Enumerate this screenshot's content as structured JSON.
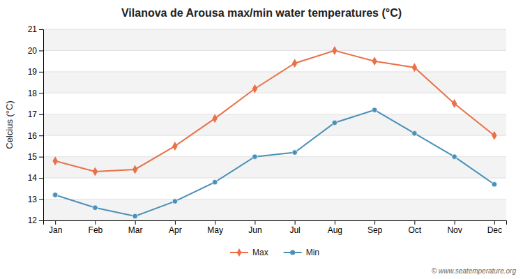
{
  "chart_data": {
    "type": "line",
    "title": "Vilanova de Arousa max/min water temperatures (°C)",
    "categories": [
      "Jan",
      "Feb",
      "Mar",
      "Apr",
      "May",
      "Jun",
      "Jul",
      "Aug",
      "Sep",
      "Oct",
      "Nov",
      "Dec"
    ],
    "series": [
      {
        "name": "Max",
        "color": "#E8714A",
        "marker": "diamond",
        "values": [
          14.8,
          14.3,
          14.4,
          15.5,
          16.8,
          18.2,
          19.4,
          20.0,
          19.5,
          19.2,
          17.5,
          16.0
        ]
      },
      {
        "name": "Min",
        "color": "#4A90B8",
        "marker": "circle",
        "values": [
          13.2,
          12.6,
          12.2,
          12.9,
          13.8,
          15.0,
          15.2,
          16.6,
          17.2,
          16.1,
          15.0,
          13.7
        ]
      }
    ],
    "ylabel": "Celcius (°C)",
    "ylim": [
      12,
      21
    ],
    "yticks": [
      12,
      13,
      14,
      15,
      16,
      17,
      18,
      19,
      20,
      21
    ],
    "grid": true,
    "legend": "bottom",
    "annotations": [
      "© www.seatemperature.org"
    ]
  }
}
